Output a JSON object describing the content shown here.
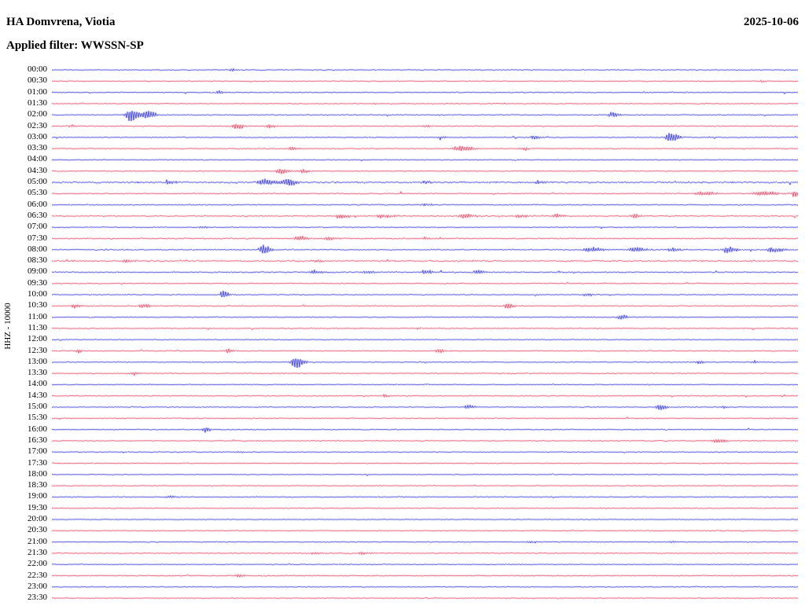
{
  "header": {
    "station": "HA Domvrena, Viotia",
    "date": "2025-10-06",
    "filter": "Applied filter: WWSSN-SP"
  },
  "chart_data": {
    "type": "seismogram",
    "title": "HA Domvrena, Viotia",
    "date": "2025-10-06",
    "filter": "Applied filter: WWSSN-SP",
    "y_axis_label": "HHZ - 10000",
    "trace_interval_minutes": 30,
    "legend_position": "none",
    "grid": false,
    "colors": {
      "blue": "#0000cd",
      "red": "#dc143c"
    },
    "rows": [
      {
        "time": "00:00",
        "color": "blue",
        "noise": 0.8,
        "events": [
          [
            0.24,
            1.8,
            6
          ]
        ]
      },
      {
        "time": "00:30",
        "color": "red",
        "noise": 0.7,
        "events": [
          [
            0.95,
            1.5,
            5
          ]
        ]
      },
      {
        "time": "01:00",
        "color": "blue",
        "noise": 0.8,
        "events": [
          [
            0.222,
            3.5,
            5
          ]
        ]
      },
      {
        "time": "01:30",
        "color": "red",
        "noise": 0.7,
        "events": []
      },
      {
        "time": "02:00",
        "color": "blue",
        "noise": 0.8,
        "events": [
          [
            0.105,
            8,
            12
          ],
          [
            0.128,
            5,
            8
          ],
          [
            0.75,
            3,
            10
          ]
        ]
      },
      {
        "time": "02:30",
        "color": "red",
        "noise": 0.8,
        "events": [
          [
            0.025,
            2.2,
            5
          ],
          [
            0.245,
            4,
            10
          ],
          [
            0.29,
            2.5,
            8
          ],
          [
            0.5,
            1.5,
            8
          ]
        ]
      },
      {
        "time": "03:00",
        "color": "blue",
        "noise": 0.8,
        "events": [
          [
            0.52,
            1.8,
            8
          ],
          [
            0.645,
            2.8,
            8
          ],
          [
            0.827,
            7,
            9
          ]
        ]
      },
      {
        "time": "03:30",
        "color": "red",
        "noise": 0.8,
        "events": [
          [
            0.32,
            2.5,
            9
          ],
          [
            0.545,
            3.8,
            16
          ],
          [
            0.63,
            2.2,
            8
          ]
        ]
      },
      {
        "time": "04:00",
        "color": "blue",
        "noise": 0.7,
        "events": []
      },
      {
        "time": "04:30",
        "color": "red",
        "noise": 0.8,
        "events": [
          [
            0.305,
            3.5,
            12
          ],
          [
            0.335,
            2.5,
            8
          ]
        ]
      },
      {
        "time": "05:00",
        "color": "blue",
        "noise": 1.5,
        "events": [
          [
            0.155,
            3.8,
            8
          ],
          [
            0.285,
            4.5,
            16
          ],
          [
            0.315,
            4.5,
            10
          ],
          [
            0.5,
            2,
            10
          ],
          [
            0.65,
            1.8,
            10
          ]
        ]
      },
      {
        "time": "05:30",
        "color": "red",
        "noise": 0.9,
        "events": [
          [
            0.87,
            2.4,
            18
          ],
          [
            0.95,
            3,
            20
          ],
          [
            0.995,
            4,
            8
          ]
        ]
      },
      {
        "time": "06:00",
        "color": "blue",
        "noise": 0.9,
        "events": [
          [
            0.5,
            1.5,
            8
          ]
        ]
      },
      {
        "time": "06:30",
        "color": "red",
        "noise": 1.0,
        "events": [
          [
            0.385,
            3.5,
            9
          ],
          [
            0.44,
            2.5,
            14
          ],
          [
            0.55,
            3.2,
            12
          ],
          [
            0.625,
            2.4,
            10
          ],
          [
            0.675,
            3,
            8
          ],
          [
            0.78,
            3,
            8
          ]
        ]
      },
      {
        "time": "07:00",
        "color": "blue",
        "noise": 0.8,
        "events": [
          [
            0.2,
            1.5,
            6
          ]
        ]
      },
      {
        "time": "07:30",
        "color": "red",
        "noise": 1.0,
        "events": [
          [
            0.33,
            3,
            11
          ],
          [
            0.37,
            2.5,
            10
          ],
          [
            0.5,
            1.5,
            8
          ]
        ]
      },
      {
        "time": "08:00",
        "color": "blue",
        "noise": 1.0,
        "events": [
          [
            0.282,
            7,
            8
          ],
          [
            0.72,
            3,
            16
          ],
          [
            0.78,
            3,
            14
          ],
          [
            0.83,
            2.5,
            10
          ],
          [
            0.905,
            4.5,
            11
          ],
          [
            0.965,
            3.5,
            14
          ]
        ]
      },
      {
        "time": "08:30",
        "color": "red",
        "noise": 1.3,
        "events": [
          [
            0.1,
            2,
            10
          ],
          [
            0.35,
            2,
            10
          ]
        ]
      },
      {
        "time": "09:00",
        "color": "blue",
        "noise": 1.0,
        "events": [
          [
            0.35,
            2.4,
            12
          ],
          [
            0.42,
            2,
            10
          ],
          [
            0.5,
            2.4,
            10
          ],
          [
            0.57,
            2.4,
            10
          ]
        ]
      },
      {
        "time": "09:30",
        "color": "red",
        "noise": 0.8,
        "events": []
      },
      {
        "time": "10:00",
        "color": "blue",
        "noise": 0.8,
        "events": [
          [
            0.228,
            4.8,
            7
          ],
          [
            0.715,
            2,
            8
          ]
        ]
      },
      {
        "time": "10:30",
        "color": "red",
        "noise": 0.8,
        "events": [
          [
            0.03,
            3.4,
            7
          ],
          [
            0.12,
            3,
            9
          ],
          [
            0.61,
            3.4,
            8
          ]
        ]
      },
      {
        "time": "11:00",
        "color": "blue",
        "noise": 0.8,
        "events": [
          [
            0.762,
            3.5,
            8
          ]
        ]
      },
      {
        "time": "11:30",
        "color": "red",
        "noise": 0.8,
        "events": [
          [
            0.49,
            1.5,
            6
          ]
        ]
      },
      {
        "time": "12:00",
        "color": "blue",
        "noise": 0.7,
        "events": []
      },
      {
        "time": "12:30",
        "color": "red",
        "noise": 0.8,
        "events": [
          [
            0.035,
            2.4,
            6
          ],
          [
            0.235,
            3,
            6
          ],
          [
            0.517,
            3.4,
            7
          ]
        ]
      },
      {
        "time": "13:00",
        "color": "blue",
        "noise": 0.8,
        "events": [
          [
            0.325,
            8,
            9
          ],
          [
            0.867,
            2.4,
            8
          ],
          [
            0.94,
            2,
            6
          ]
        ]
      },
      {
        "time": "13:30",
        "color": "red",
        "noise": 0.8,
        "events": [
          [
            0.108,
            2.5,
            8
          ]
        ]
      },
      {
        "time": "14:00",
        "color": "blue",
        "noise": 0.7,
        "events": []
      },
      {
        "time": "14:30",
        "color": "red",
        "noise": 0.8,
        "events": [
          [
            0.445,
            2.4,
            6
          ]
        ]
      },
      {
        "time": "15:00",
        "color": "blue",
        "noise": 0.8,
        "events": [
          [
            0.556,
            2.8,
            8
          ],
          [
            0.814,
            3.8,
            8
          ],
          [
            0.9,
            1.8,
            6
          ]
        ]
      },
      {
        "time": "15:30",
        "color": "red",
        "noise": 0.7,
        "events": []
      },
      {
        "time": "16:00",
        "color": "blue",
        "noise": 0.8,
        "events": [
          [
            0.205,
            4.4,
            6
          ]
        ]
      },
      {
        "time": "16:30",
        "color": "red",
        "noise": 0.8,
        "events": [
          [
            0.89,
            3,
            9
          ]
        ]
      },
      {
        "time": "17:00",
        "color": "blue",
        "noise": 0.8,
        "events": [
          [
            0.25,
            1.5,
            6
          ]
        ]
      },
      {
        "time": "17:30",
        "color": "red",
        "noise": 0.7,
        "events": []
      },
      {
        "time": "18:00",
        "color": "blue",
        "noise": 0.7,
        "events": []
      },
      {
        "time": "18:30",
        "color": "red",
        "noise": 0.7,
        "events": []
      },
      {
        "time": "19:00",
        "color": "blue",
        "noise": 0.8,
        "events": [
          [
            0.156,
            2,
            9
          ]
        ]
      },
      {
        "time": "19:30",
        "color": "red",
        "noise": 0.7,
        "events": []
      },
      {
        "time": "20:00",
        "color": "blue",
        "noise": 0.7,
        "events": []
      },
      {
        "time": "20:30",
        "color": "red",
        "noise": 0.7,
        "events": []
      },
      {
        "time": "21:00",
        "color": "blue",
        "noise": 0.8,
        "events": [
          [
            0.64,
            1.5,
            8
          ],
          [
            0.83,
            1.5,
            8
          ]
        ]
      },
      {
        "time": "21:30",
        "color": "red",
        "noise": 0.8,
        "events": [
          [
            0.35,
            2,
            8
          ],
          [
            0.414,
            2,
            10
          ]
        ]
      },
      {
        "time": "22:00",
        "color": "blue",
        "noise": 0.7,
        "events": []
      },
      {
        "time": "22:30",
        "color": "red",
        "noise": 0.8,
        "events": [
          [
            0.249,
            2.4,
            6
          ]
        ]
      },
      {
        "time": "23:00",
        "color": "blue",
        "noise": 0.7,
        "events": []
      },
      {
        "time": "23:30",
        "color": "red",
        "noise": 0.7,
        "events": []
      }
    ]
  }
}
